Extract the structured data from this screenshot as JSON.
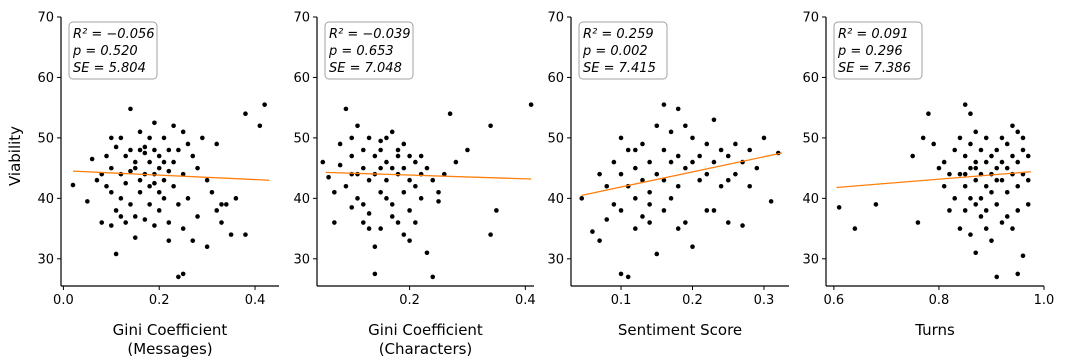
{
  "ylabel": "Viability",
  "colors": {
    "point": "#000000",
    "trend": "#ff7f0e",
    "axis": "#000000",
    "box_edge": "#a0a0a0"
  },
  "chart_data": [
    {
      "type": "scatter",
      "xlabel_lines": [
        "Gini Coefficient",
        "(Messages)"
      ],
      "xlim": [
        -0.005,
        0.45
      ],
      "ylim": [
        25.5,
        70
      ],
      "xticks": [
        0.0,
        0.2,
        0.4
      ],
      "xtick_labels": [
        "0.0",
        "0.2",
        "0.4"
      ],
      "yticks": [
        30,
        40,
        50,
        60,
        70
      ],
      "ytick_labels": [
        "30",
        "40",
        "50",
        "60",
        "70"
      ],
      "stats": [
        "R² = −0.056",
        "p = 0.520",
        "SE = 5.804"
      ],
      "trend": {
        "x": [
          0.02,
          0.43
        ],
        "y": [
          44.5,
          43.0
        ]
      },
      "points": [
        [
          0.02,
          42.2
        ],
        [
          0.05,
          39.5
        ],
        [
          0.06,
          46.5
        ],
        [
          0.07,
          43
        ],
        [
          0.08,
          44
        ],
        [
          0.08,
          36
        ],
        [
          0.09,
          47
        ],
        [
          0.09,
          42
        ],
        [
          0.1,
          50
        ],
        [
          0.1,
          45
        ],
        [
          0.1,
          41
        ],
        [
          0.1,
          35.5
        ],
        [
          0.11,
          48.5
        ],
        [
          0.11,
          38
        ],
        [
          0.11,
          30.8
        ],
        [
          0.12,
          50
        ],
        [
          0.12,
          44
        ],
        [
          0.12,
          40
        ],
        [
          0.13,
          47
        ],
        [
          0.13,
          42.5
        ],
        [
          0.13,
          36
        ],
        [
          0.14,
          54.8
        ],
        [
          0.14,
          48
        ],
        [
          0.14,
          44.5
        ],
        [
          0.14,
          39
        ],
        [
          0.15,
          46
        ],
        [
          0.15,
          45
        ],
        [
          0.15,
          37
        ],
        [
          0.16,
          51
        ],
        [
          0.16,
          48
        ],
        [
          0.16,
          43
        ],
        [
          0.16,
          41
        ],
        [
          0.17,
          47.5
        ],
        [
          0.17,
          44
        ],
        [
          0.17,
          36.5
        ],
        [
          0.18,
          50
        ],
        [
          0.18,
          46
        ],
        [
          0.18,
          42
        ],
        [
          0.18,
          39
        ],
        [
          0.19,
          52.5
        ],
        [
          0.19,
          48
        ],
        [
          0.19,
          44
        ],
        [
          0.19,
          35.5
        ],
        [
          0.2,
          47
        ],
        [
          0.2,
          45
        ],
        [
          0.2,
          41
        ],
        [
          0.2,
          38
        ],
        [
          0.21,
          50
        ],
        [
          0.21,
          43
        ],
        [
          0.21,
          40
        ],
        [
          0.22,
          48
        ],
        [
          0.22,
          44.5
        ],
        [
          0.22,
          36
        ],
        [
          0.23,
          52
        ],
        [
          0.23,
          46
        ],
        [
          0.23,
          42
        ],
        [
          0.24,
          48
        ],
        [
          0.24,
          39
        ],
        [
          0.24,
          27
        ],
        [
          0.25,
          51
        ],
        [
          0.25,
          44
        ],
        [
          0.25,
          27.5
        ],
        [
          0.26,
          49
        ],
        [
          0.26,
          40
        ],
        [
          0.27,
          47
        ],
        [
          0.27,
          33
        ],
        [
          0.28,
          45
        ],
        [
          0.28,
          37
        ],
        [
          0.29,
          50
        ],
        [
          0.3,
          43
        ],
        [
          0.3,
          32
        ],
        [
          0.31,
          41
        ],
        [
          0.32,
          49
        ],
        [
          0.32,
          38
        ],
        [
          0.33,
          36
        ],
        [
          0.34,
          39
        ],
        [
          0.35,
          34
        ],
        [
          0.36,
          40
        ],
        [
          0.38,
          34
        ],
        [
          0.38,
          54
        ],
        [
          0.41,
          52
        ],
        [
          0.42,
          55.5
        ],
        [
          0.33,
          39
        ],
        [
          0.25,
          35
        ],
        [
          0.22,
          33
        ],
        [
          0.15,
          33.5
        ],
        [
          0.12,
          37
        ],
        [
          0.17,
          48.5
        ],
        [
          0.19,
          42.5
        ],
        [
          0.21,
          46
        ]
      ]
    },
    {
      "type": "scatter",
      "xlabel_lines": [
        "Gini Coefficient",
        "(Characters)"
      ],
      "xlim": [
        0.04,
        0.415
      ],
      "ylim": [
        25.5,
        70
      ],
      "xticks": [
        0.2,
        0.4
      ],
      "xtick_labels": [
        "0.2",
        "0.4"
      ],
      "yticks": [
        30,
        40,
        50,
        60,
        70
      ],
      "ytick_labels": [
        "30",
        "40",
        "50",
        "60",
        "70"
      ],
      "stats": [
        "R² = −0.039",
        "p = 0.653",
        "SE = 7.048"
      ],
      "trend": {
        "x": [
          0.055,
          0.41
        ],
        "y": [
          44.3,
          43.2
        ]
      },
      "points": [
        [
          0.05,
          46
        ],
        [
          0.06,
          43.5
        ],
        [
          0.07,
          41
        ],
        [
          0.07,
          36
        ],
        [
          0.08,
          49
        ],
        [
          0.08,
          45.5
        ],
        [
          0.09,
          54.8
        ],
        [
          0.09,
          42
        ],
        [
          0.1,
          50
        ],
        [
          0.1,
          47
        ],
        [
          0.1,
          38.5
        ],
        [
          0.11,
          52
        ],
        [
          0.11,
          44
        ],
        [
          0.11,
          40
        ],
        [
          0.12,
          48
        ],
        [
          0.12,
          45
        ],
        [
          0.12,
          36
        ],
        [
          0.13,
          50
        ],
        [
          0.13,
          43
        ],
        [
          0.13,
          37.5
        ],
        [
          0.14,
          47
        ],
        [
          0.14,
          44
        ],
        [
          0.14,
          32
        ],
        [
          0.14,
          27.5
        ],
        [
          0.15,
          48
        ],
        [
          0.15,
          45
        ],
        [
          0.15,
          41
        ],
        [
          0.15,
          35
        ],
        [
          0.16,
          50
        ],
        [
          0.16,
          46
        ],
        [
          0.16,
          43
        ],
        [
          0.17,
          51
        ],
        [
          0.17,
          45
        ],
        [
          0.17,
          39
        ],
        [
          0.18,
          48
        ],
        [
          0.18,
          44
        ],
        [
          0.18,
          36
        ],
        [
          0.19,
          49
        ],
        [
          0.19,
          45
        ],
        [
          0.19,
          41
        ],
        [
          0.2,
          47
        ],
        [
          0.2,
          43
        ],
        [
          0.2,
          38
        ],
        [
          0.21,
          46
        ],
        [
          0.21,
          42
        ],
        [
          0.21,
          36
        ],
        [
          0.22,
          47
        ],
        [
          0.22,
          44
        ],
        [
          0.23,
          45
        ],
        [
          0.23,
          31
        ],
        [
          0.24,
          43
        ],
        [
          0.24,
          27
        ],
        [
          0.25,
          41
        ],
        [
          0.26,
          44
        ],
        [
          0.27,
          54
        ],
        [
          0.28,
          46
        ],
        [
          0.3,
          48
        ],
        [
          0.34,
          52
        ],
        [
          0.35,
          38
        ],
        [
          0.34,
          34
        ],
        [
          0.41,
          55.5
        ],
        [
          0.19,
          34
        ],
        [
          0.17,
          37
        ],
        [
          0.13,
          35
        ],
        [
          0.12,
          39
        ],
        [
          0.1,
          44
        ],
        [
          0.16,
          40
        ],
        [
          0.2,
          33
        ],
        [
          0.22,
          40
        ],
        [
          0.25,
          39.5
        ],
        [
          0.15,
          49.5
        ],
        [
          0.18,
          47
        ]
      ]
    },
    {
      "type": "scatter",
      "xlabel_lines": [
        "Sentiment Score"
      ],
      "xlim": [
        0.03,
        0.335
      ],
      "ylim": [
        25.5,
        70
      ],
      "xticks": [
        0.1,
        0.2,
        0.3
      ],
      "xtick_labels": [
        "0.1",
        "0.2",
        "0.3"
      ],
      "yticks": [
        30,
        40,
        50,
        60,
        70
      ],
      "ytick_labels": [
        "30",
        "40",
        "50",
        "60",
        "70"
      ],
      "stats": [
        "R² = 0.259",
        "p = 0.002",
        "SE = 7.415"
      ],
      "trend": {
        "x": [
          0.045,
          0.325
        ],
        "y": [
          40.5,
          47.5
        ]
      },
      "points": [
        [
          0.045,
          40
        ],
        [
          0.06,
          34.5
        ],
        [
          0.07,
          44
        ],
        [
          0.07,
          33
        ],
        [
          0.08,
          42
        ],
        [
          0.08,
          36.5
        ],
        [
          0.09,
          46
        ],
        [
          0.09,
          39
        ],
        [
          0.1,
          50
        ],
        [
          0.1,
          44
        ],
        [
          0.1,
          38
        ],
        [
          0.1,
          27.5
        ],
        [
          0.11,
          48
        ],
        [
          0.11,
          42
        ],
        [
          0.11,
          27
        ],
        [
          0.12,
          45
        ],
        [
          0.12,
          40
        ],
        [
          0.12,
          35
        ],
        [
          0.13,
          49
        ],
        [
          0.13,
          43
        ],
        [
          0.13,
          37
        ],
        [
          0.14,
          46
        ],
        [
          0.14,
          41
        ],
        [
          0.14,
          36
        ],
        [
          0.15,
          52
        ],
        [
          0.15,
          44
        ],
        [
          0.15,
          30.8
        ],
        [
          0.16,
          55.5
        ],
        [
          0.16,
          48
        ],
        [
          0.16,
          43
        ],
        [
          0.17,
          51
        ],
        [
          0.17,
          46
        ],
        [
          0.17,
          40
        ],
        [
          0.18,
          54.8
        ],
        [
          0.18,
          47
        ],
        [
          0.18,
          42
        ],
        [
          0.19,
          52
        ],
        [
          0.19,
          45
        ],
        [
          0.19,
          36
        ],
        [
          0.2,
          50
        ],
        [
          0.2,
          32
        ],
        [
          0.21,
          47
        ],
        [
          0.21,
          43
        ],
        [
          0.22,
          49
        ],
        [
          0.22,
          44
        ],
        [
          0.23,
          53
        ],
        [
          0.23,
          46
        ],
        [
          0.23,
          38
        ],
        [
          0.24,
          48
        ],
        [
          0.24,
          42
        ],
        [
          0.25,
          47
        ],
        [
          0.25,
          36
        ],
        [
          0.26,
          49
        ],
        [
          0.26,
          44
        ],
        [
          0.27,
          46
        ],
        [
          0.27,
          35.5
        ],
        [
          0.28,
          48
        ],
        [
          0.28,
          42
        ],
        [
          0.29,
          45
        ],
        [
          0.3,
          50
        ],
        [
          0.31,
          39.5
        ],
        [
          0.32,
          47.5
        ],
        [
          0.14,
          39
        ],
        [
          0.16,
          38
        ],
        [
          0.12,
          48
        ],
        [
          0.2,
          46
        ],
        [
          0.22,
          38
        ],
        [
          0.18,
          35
        ],
        [
          0.25,
          43
        ]
      ]
    },
    {
      "type": "scatter",
      "xlabel_lines": [
        "Turns"
      ],
      "xlim": [
        0.585,
        1.0
      ],
      "ylim": [
        25.5,
        70
      ],
      "xticks": [
        0.6,
        0.8,
        1.0
      ],
      "xtick_labels": [
        "0.6",
        "0.8",
        "1.0"
      ],
      "yticks": [
        30,
        40,
        50,
        60,
        70
      ],
      "ytick_labels": [
        "30",
        "40",
        "50",
        "60",
        "70"
      ],
      "stats": [
        "R² = 0.091",
        "p = 0.296",
        "SE = 7.386"
      ],
      "trend": {
        "x": [
          0.605,
          0.975
        ],
        "y": [
          41.8,
          44.4
        ]
      },
      "points": [
        [
          0.61,
          38.5
        ],
        [
          0.64,
          35
        ],
        [
          0.68,
          39
        ],
        [
          0.75,
          47
        ],
        [
          0.76,
          36
        ],
        [
          0.77,
          50
        ],
        [
          0.78,
          54
        ],
        [
          0.79,
          49
        ],
        [
          0.8,
          45
        ],
        [
          0.81,
          46
        ],
        [
          0.81,
          42
        ],
        [
          0.82,
          44
        ],
        [
          0.82,
          38
        ],
        [
          0.83,
          48
        ],
        [
          0.83,
          40
        ],
        [
          0.84,
          50
        ],
        [
          0.84,
          44
        ],
        [
          0.84,
          35
        ],
        [
          0.85,
          55.5
        ],
        [
          0.85,
          47
        ],
        [
          0.85,
          42
        ],
        [
          0.85,
          38
        ],
        [
          0.86,
          54
        ],
        [
          0.86,
          49
        ],
        [
          0.86,
          45
        ],
        [
          0.86,
          40
        ],
        [
          0.86,
          34
        ],
        [
          0.87,
          51
        ],
        [
          0.87,
          46
        ],
        [
          0.87,
          43
        ],
        [
          0.87,
          39
        ],
        [
          0.87,
          31
        ],
        [
          0.88,
          48
        ],
        [
          0.88,
          44
        ],
        [
          0.88,
          40
        ],
        [
          0.88,
          37
        ],
        [
          0.89,
          50
        ],
        [
          0.89,
          46
        ],
        [
          0.89,
          42
        ],
        [
          0.89,
          38
        ],
        [
          0.9,
          47
        ],
        [
          0.9,
          44
        ],
        [
          0.9,
          41
        ],
        [
          0.9,
          33
        ],
        [
          0.91,
          48
        ],
        [
          0.91,
          45
        ],
        [
          0.91,
          39
        ],
        [
          0.91,
          27
        ],
        [
          0.92,
          50
        ],
        [
          0.92,
          46
        ],
        [
          0.92,
          43
        ],
        [
          0.92,
          36
        ],
        [
          0.93,
          49
        ],
        [
          0.93,
          45
        ],
        [
          0.93,
          41
        ],
        [
          0.94,
          52
        ],
        [
          0.94,
          47
        ],
        [
          0.94,
          44
        ],
        [
          0.94,
          35
        ],
        [
          0.95,
          51
        ],
        [
          0.95,
          46
        ],
        [
          0.95,
          42
        ],
        [
          0.95,
          38
        ],
        [
          0.95,
          27.5
        ],
        [
          0.96,
          48
        ],
        [
          0.96,
          44
        ],
        [
          0.96,
          30.5
        ],
        [
          0.97,
          47
        ],
        [
          0.97,
          43
        ],
        [
          0.97,
          39
        ],
        [
          0.93,
          37
        ],
        [
          0.89,
          35
        ],
        [
          0.87,
          45
        ],
        [
          0.85,
          44
        ],
        [
          0.91,
          43
        ],
        [
          0.96,
          50
        ]
      ]
    }
  ]
}
